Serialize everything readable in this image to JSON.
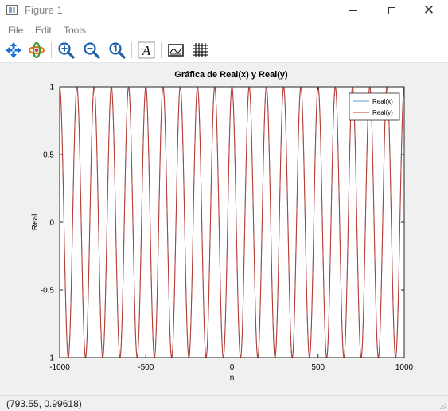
{
  "window": {
    "title": "Figure 1",
    "controls": {
      "minimize_icon": "minimize-icon",
      "maximize_icon": "maximize-icon",
      "close_icon": "close-icon"
    }
  },
  "menu": {
    "items": [
      "File",
      "Edit",
      "Tools"
    ]
  },
  "toolbar": {
    "tools": [
      "pan-icon",
      "rotate-icon",
      "zoom-in-icon",
      "zoom-out-icon",
      "reset-zoom-icon",
      "text-icon",
      "toggle-axes-icon",
      "toggle-grid-icon"
    ],
    "text_glyph": "A"
  },
  "colors": {
    "series_x": "#5b9bd5",
    "series_y": "#c0392b",
    "figure_bg": "#f0f0f0",
    "axes_bg": "#ffffff"
  },
  "chart_data": {
    "type": "line",
    "title": "Gráfica de Real(x) y Real(y)",
    "xlabel": "n",
    "ylabel": "Real",
    "xlim": [
      -1000,
      1000
    ],
    "ylim": [
      -1,
      1
    ],
    "xticks": [
      "-1000",
      "-500",
      "0",
      "500",
      "1000"
    ],
    "yticks": [
      "-1",
      "-0.5",
      "0",
      "0.5",
      "1"
    ],
    "grid": false,
    "legend": {
      "placement": "top-right",
      "entries": [
        "Real(x)",
        "Real(y)"
      ]
    },
    "series": [
      {
        "name": "Real(x)",
        "function": "cos(2*pi*n/100)",
        "period": 100
      },
      {
        "name": "Real(y)",
        "function": "cos(2*pi*n/100)",
        "period": 100
      }
    ]
  },
  "status": {
    "coordinates": "(793.55, 0.99618)"
  }
}
